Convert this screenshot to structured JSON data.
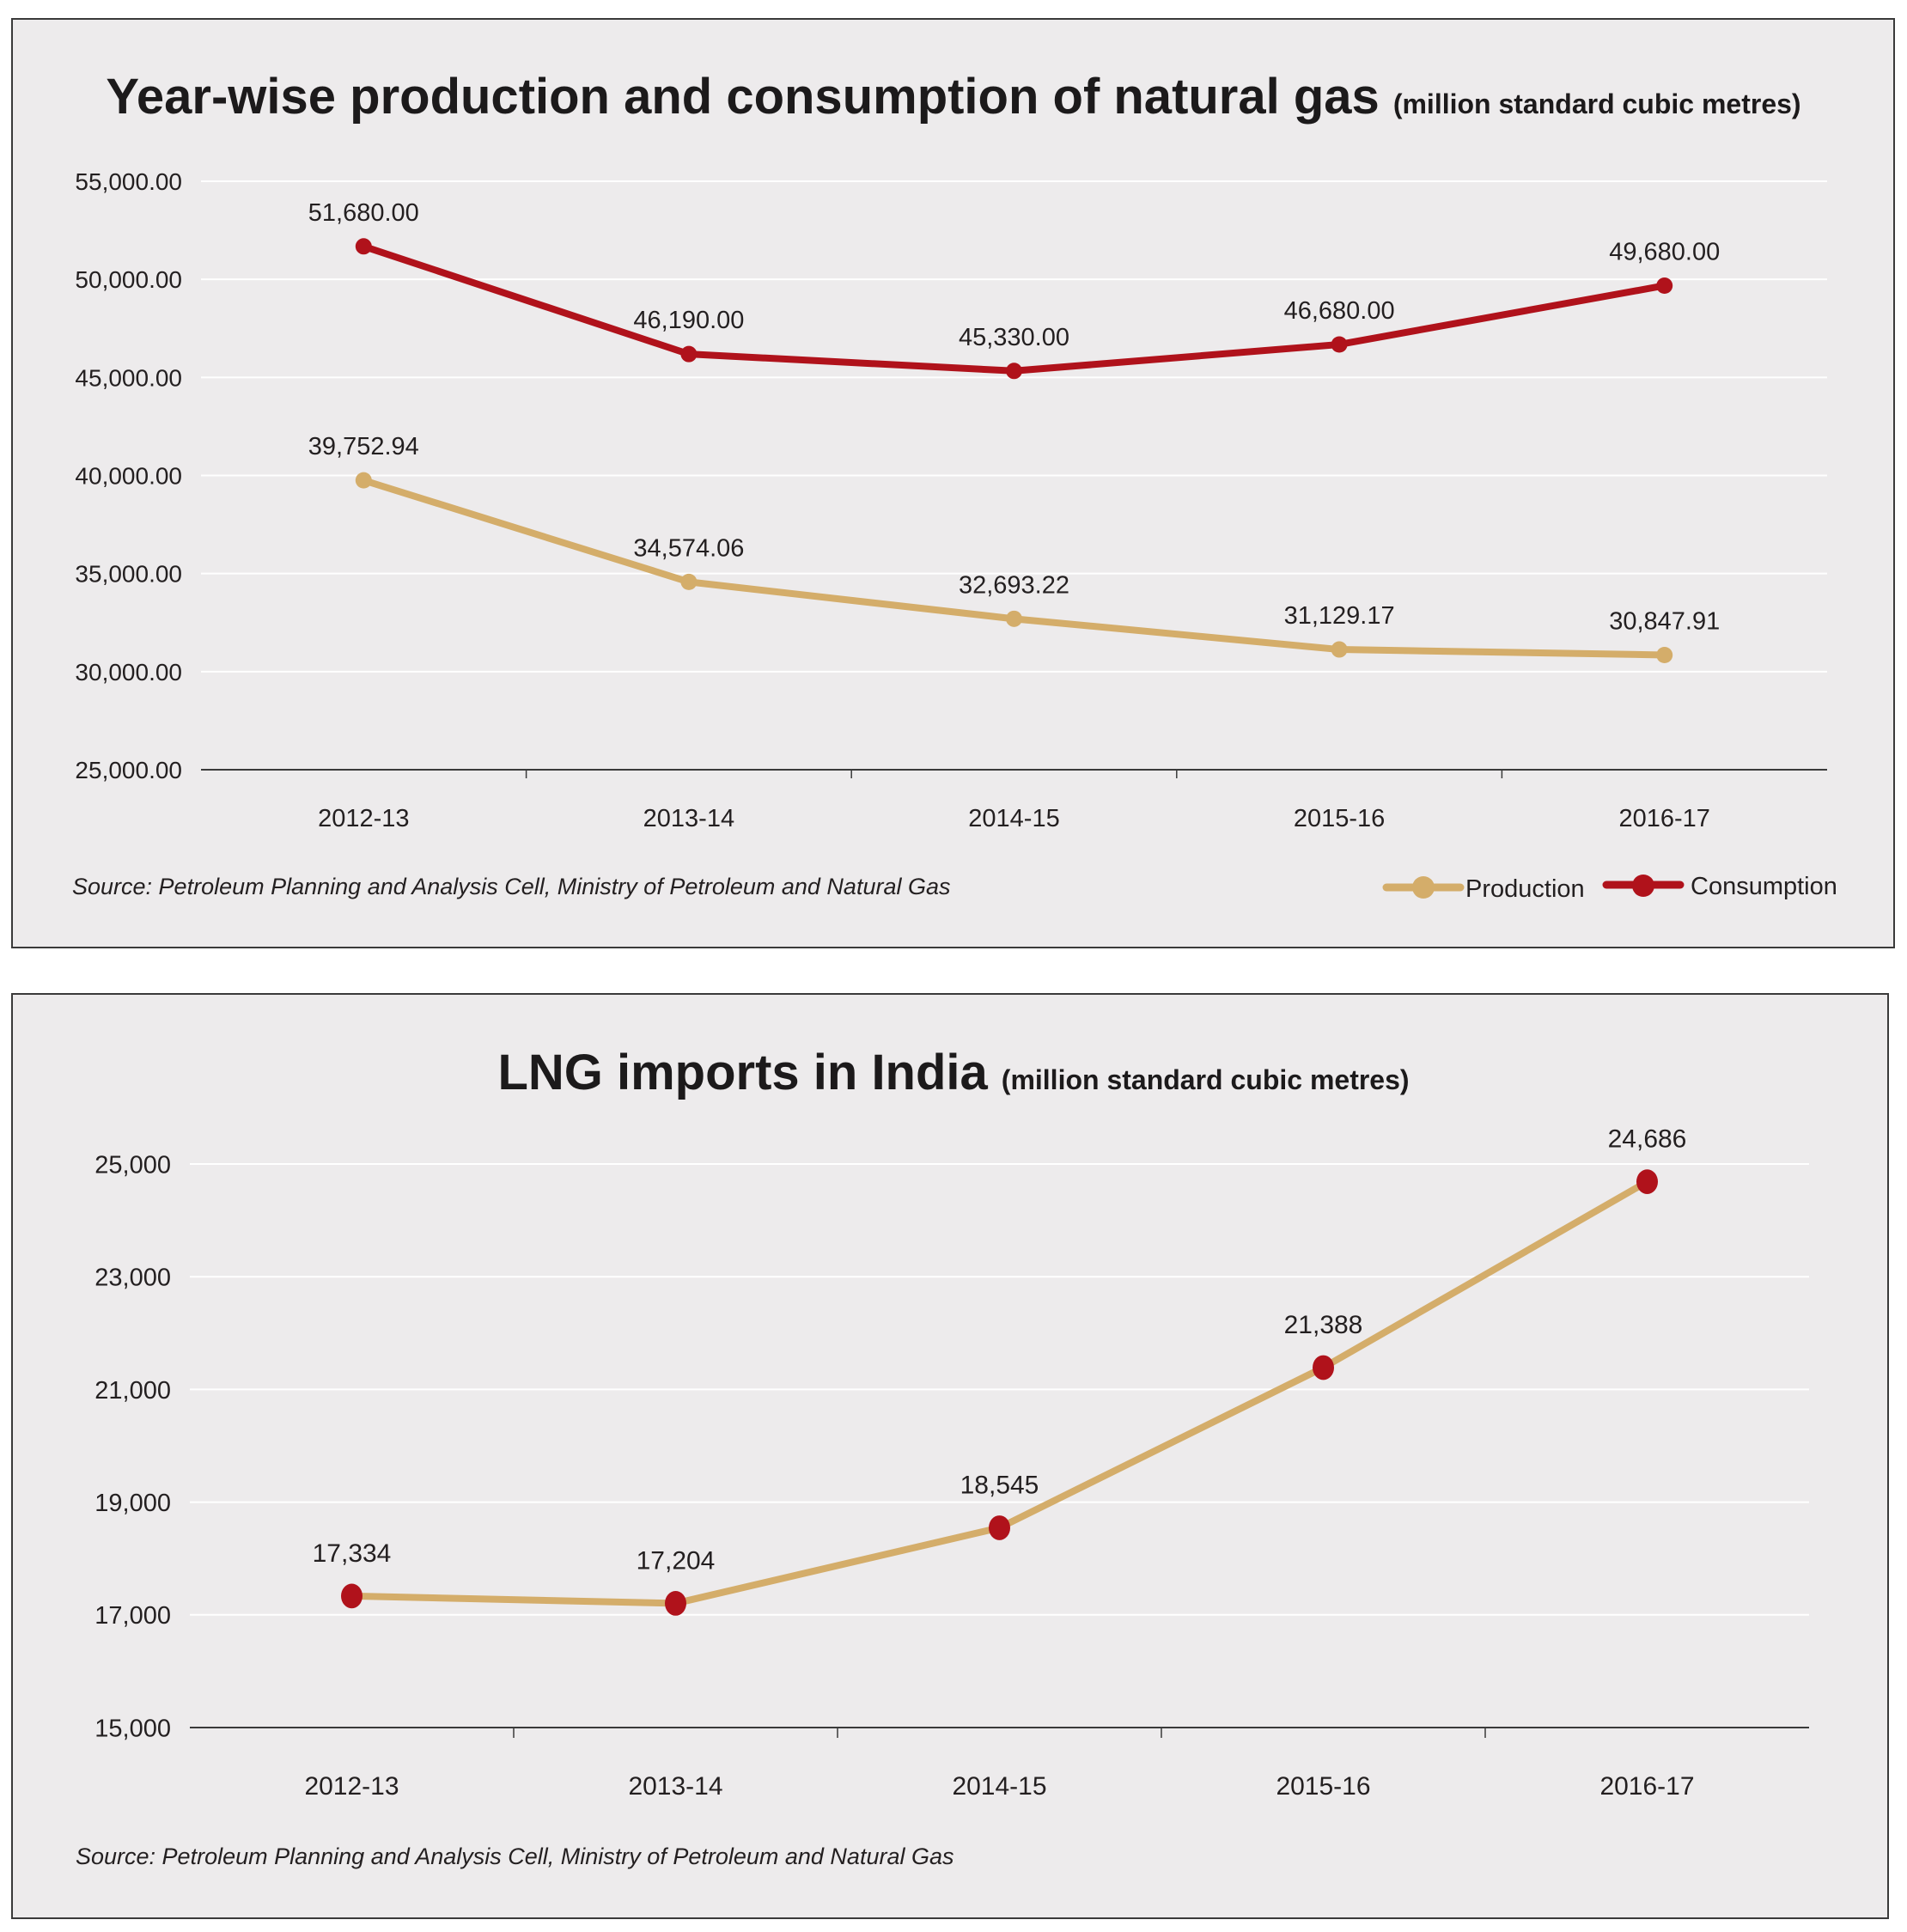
{
  "colors": {
    "production": "#d4ad6a",
    "consumption": "#b0121b",
    "lng_line": "#d4ad6a",
    "lng_marker": "#b0121b",
    "background": "#edebec",
    "text": "#231f20"
  },
  "chart_data": [
    {
      "type": "line",
      "title": "Year-wise production and consumption of natural gas",
      "subtitle": "(million standard cubic metres)",
      "categories": [
        "2012-13",
        "2013-14",
        "2014-15",
        "2015-16",
        "2016-17"
      ],
      "series": [
        {
          "name": "Production",
          "values": [
            39752.94,
            34574.06,
            32693.22,
            31129.17,
            30847.91
          ],
          "labels": [
            "39,752.94",
            "34,574.06",
            "32,693.22",
            "31,129.17",
            "30,847.91"
          ]
        },
        {
          "name": "Consumption",
          "values": [
            51680.0,
            46190.0,
            45330.0,
            46680.0,
            49680.0
          ],
          "labels": [
            "51,680.00",
            "46,190.00",
            "45,330.00",
            "46,680.00",
            "49,680.00"
          ]
        }
      ],
      "ylim": [
        25000,
        55000
      ],
      "yticks": [
        25000,
        30000,
        35000,
        40000,
        45000,
        50000,
        55000
      ],
      "ytick_labels": [
        "25,000.00",
        "30,000.00",
        "35,000.00",
        "40,000.00",
        "45,000.00",
        "50,000.00",
        "55,000.00"
      ],
      "xlabel": "",
      "ylabel": "",
      "grid": true,
      "legend": {
        "position": "bottom-right",
        "entries": [
          "Production",
          "Consumption"
        ]
      },
      "source": "Source: Petroleum Planning and Analysis Cell, Ministry of Petroleum and Natural Gas"
    },
    {
      "type": "line",
      "title": "LNG imports in India",
      "subtitle": "(million standard cubic metres)",
      "categories": [
        "2012-13",
        "2013-14",
        "2014-15",
        "2015-16",
        "2016-17"
      ],
      "series": [
        {
          "name": "LNG imports",
          "values": [
            17334,
            17204,
            18545,
            21388,
            24686
          ],
          "labels": [
            "17,334",
            "17,204",
            "18,545",
            "21,388",
            "24,686"
          ]
        }
      ],
      "ylim": [
        15000,
        25000
      ],
      "yticks": [
        15000,
        17000,
        19000,
        21000,
        23000,
        25000
      ],
      "ytick_labels": [
        "15,000",
        "17,000",
        "19,000",
        "21,000",
        "23,000",
        "25,000"
      ],
      "xlabel": "",
      "ylabel": "",
      "grid": true,
      "legend": null,
      "source": "Source: Petroleum Planning and Analysis Cell, Ministry of Petroleum and Natural Gas"
    }
  ]
}
